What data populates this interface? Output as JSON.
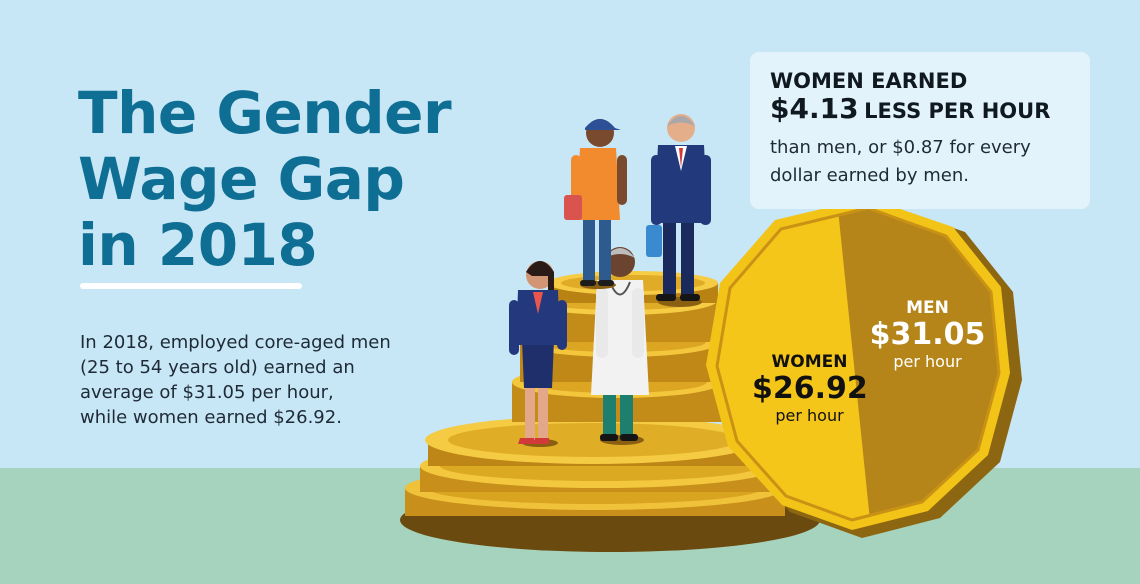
{
  "title": {
    "lines": [
      "The Gender",
      "Wage Gap",
      "in 2018"
    ]
  },
  "intro": {
    "lines": [
      "In 2018, employed core-aged men",
      "(25 to 54 years old) earned an",
      "average of $31.05 per hour,",
      "while women earned $26.92."
    ]
  },
  "callout": {
    "heading": "WOMEN EARNED",
    "amount": "$4.13",
    "heading_rest": "LESS PER HOUR",
    "body_lines": [
      "than men, or $0.87 for every",
      "dollar earned by men."
    ]
  },
  "coin": {
    "men": {
      "label": "MEN",
      "amount": "$31.05",
      "unit": "per hour"
    },
    "women": {
      "label": "WOMEN",
      "amount": "$26.92",
      "unit": "per hour"
    }
  },
  "colors": {
    "sky": "#c7e6f6",
    "ground": "#a6d3bd",
    "title_blue": "#0f6e93",
    "coin_gold": "#f2c418",
    "coin_dark_gold": "#b5851a",
    "callout_bg": "#e3f3fb"
  },
  "icons": [
    "coin-stack-illustration",
    "woman-professional-illustration",
    "doctor-illustration",
    "worker-illustration",
    "businessman-illustration",
    "large-coin-illustration"
  ]
}
